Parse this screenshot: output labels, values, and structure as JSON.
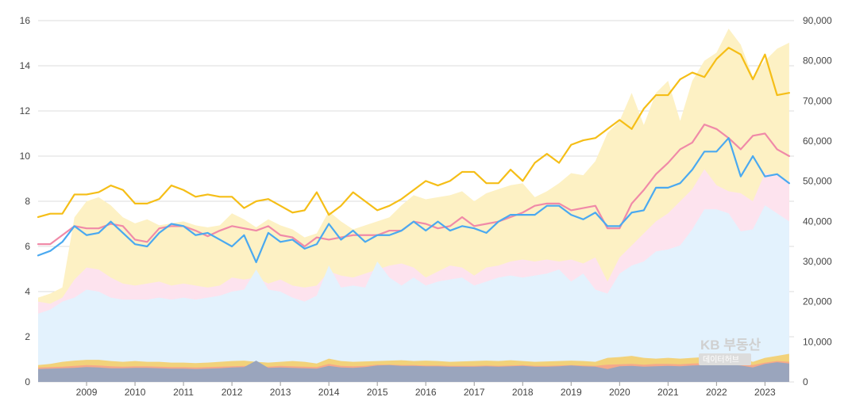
{
  "watermark": {
    "logo": "KB 부동산",
    "sub": "데이터허브"
  },
  "colors": {
    "area_yellow": "#fdf1c4",
    "area_pink": "#fde3ee",
    "area_blue": "#e3f2fd",
    "bottom_gold": "#f2d27a",
    "bottom_orange": "#f5a98a",
    "bottom_slate": "#9aa5bd",
    "line_gold": "#f5be17",
    "line_pink": "#f08aa8",
    "line_blue": "#4aa9f0",
    "grid": "#dddddd"
  },
  "chart_data": {
    "type": "line",
    "x_start": 2008.0,
    "x_end": 2023.6,
    "x_step": 0.25,
    "xticks": [
      "2009",
      "2010",
      "2011",
      "2012",
      "2013",
      "2014",
      "2015",
      "2016",
      "2017",
      "2018",
      "2019",
      "2020",
      "2021",
      "2022",
      "2023"
    ],
    "yleft": {
      "ticks": [
        "0",
        "2",
        "4",
        "6",
        "8",
        "10",
        "12",
        "14",
        "16"
      ],
      "range": [
        0,
        16
      ]
    },
    "yright": {
      "ticks": [
        "0",
        "10,000",
        "20,000",
        "30,000",
        "40,000",
        "50,000",
        "60,000",
        "70,000",
        "80,000",
        "90,000"
      ],
      "range": [
        0,
        90000
      ]
    },
    "grid": true,
    "legend": "none",
    "lines": [
      {
        "color": "line_gold",
        "axis": "left",
        "values": [
          7.3,
          7.45,
          7.45,
          8.3,
          8.3,
          8.4,
          8.7,
          8.5,
          7.9,
          7.9,
          8.1,
          8.7,
          8.5,
          8.2,
          8.3,
          8.2,
          8.2,
          7.7,
          8.0,
          8.1,
          7.8,
          7.5,
          7.6,
          8.4,
          7.4,
          7.8,
          8.4,
          8.0,
          7.6,
          7.8,
          8.1,
          8.5,
          8.9,
          8.7,
          8.9,
          9.3,
          9.3,
          8.8,
          8.8,
          9.4,
          8.9,
          9.7,
          10.1,
          9.7,
          10.5,
          10.7,
          10.8,
          11.2,
          11.6,
          11.2,
          12.1,
          12.7,
          12.7,
          13.4,
          13.7,
          13.5,
          14.3,
          14.8,
          14.5,
          13.4,
          14.5,
          12.7,
          12.8
        ]
      },
      {
        "color": "line_pink",
        "axis": "left",
        "values": [
          6.1,
          6.1,
          6.5,
          6.9,
          6.8,
          6.8,
          7.0,
          6.9,
          6.3,
          6.2,
          6.8,
          6.9,
          6.9,
          6.7,
          6.45,
          6.7,
          6.9,
          6.8,
          6.7,
          6.9,
          6.5,
          6.4,
          6.0,
          6.4,
          6.3,
          6.4,
          6.5,
          6.5,
          6.5,
          6.7,
          6.7,
          7.1,
          7.0,
          6.8,
          6.9,
          7.3,
          6.9,
          7.0,
          7.1,
          7.3,
          7.5,
          7.8,
          7.9,
          7.9,
          7.6,
          7.7,
          7.8,
          6.8,
          6.8,
          7.9,
          8.5,
          9.2,
          9.7,
          10.3,
          10.6,
          11.4,
          11.2,
          10.8,
          10.3,
          10.9,
          11.0,
          10.3,
          10.0
        ]
      },
      {
        "color": "line_blue",
        "axis": "left",
        "values": [
          5.6,
          5.8,
          6.2,
          6.9,
          6.5,
          6.6,
          7.1,
          6.6,
          6.1,
          6.0,
          6.6,
          7.0,
          6.9,
          6.5,
          6.6,
          6.3,
          6.0,
          6.5,
          5.3,
          6.6,
          6.2,
          6.3,
          5.9,
          6.1,
          7.0,
          6.3,
          6.7,
          6.2,
          6.5,
          6.5,
          6.7,
          7.1,
          6.7,
          7.1,
          6.7,
          6.9,
          6.8,
          6.6,
          7.1,
          7.4,
          7.4,
          7.4,
          7.8,
          7.8,
          7.4,
          7.2,
          7.5,
          6.9,
          6.9,
          7.5,
          7.6,
          8.6,
          8.6,
          8.8,
          9.4,
          10.2,
          10.2,
          10.8,
          9.1,
          10.0,
          9.1,
          9.2,
          8.8
        ]
      }
    ],
    "areas": [
      {
        "color": "area_yellow",
        "axis": "right",
        "values": [
          21000,
          22000,
          23500,
          41000,
          45000,
          46000,
          44000,
          41000,
          39500,
          40500,
          39000,
          39500,
          40000,
          39000,
          38500,
          39000,
          42000,
          40500,
          38500,
          40500,
          39000,
          38000,
          36000,
          37000,
          42500,
          40000,
          38000,
          39000,
          40000,
          41000,
          44000,
          46500,
          45500,
          46000,
          46500,
          47500,
          45000,
          47000,
          48000,
          49000,
          49500,
          46000,
          47500,
          49500,
          52000,
          51500,
          55000,
          62000,
          65000,
          72000,
          64000,
          72000,
          75000,
          65000,
          75000,
          80000,
          82000,
          88000,
          84000,
          76000,
          80000,
          83000,
          84500
        ]
      },
      {
        "color": "area_pink",
        "axis": "right",
        "values": [
          20000,
          19500,
          21000,
          25500,
          28500,
          28000,
          26000,
          24500,
          24000,
          24500,
          25000,
          24000,
          24500,
          24000,
          23500,
          24000,
          26000,
          25500,
          26000,
          24500,
          25500,
          24000,
          23500,
          24000,
          27500,
          26500,
          26000,
          27000,
          28000,
          29000,
          29500,
          28500,
          26000,
          27500,
          29000,
          28500,
          26500,
          28500,
          29000,
          30000,
          30500,
          30000,
          30500,
          30000,
          30500,
          29500,
          31000,
          25000,
          31000,
          34000,
          37000,
          40000,
          42000,
          45000,
          48000,
          53000,
          49000,
          47500,
          47000,
          45000,
          52000,
          51500,
          50000
        ]
      },
      {
        "color": "area_blue",
        "axis": "right",
        "values": [
          17000,
          18000,
          20000,
          21000,
          23000,
          22500,
          21000,
          20500,
          20500,
          20500,
          21000,
          20500,
          21000,
          20500,
          21000,
          21500,
          22500,
          23000,
          28000,
          23000,
          22500,
          21000,
          20000,
          21500,
          29000,
          23500,
          24000,
          23500,
          30000,
          26000,
          24000,
          26000,
          24000,
          25000,
          25500,
          26000,
          24000,
          25000,
          26000,
          26500,
          26000,
          26500,
          27000,
          28000,
          25000,
          27000,
          23000,
          22000,
          27000,
          29000,
          30000,
          32500,
          33000,
          34000,
          38000,
          43000,
          43000,
          42000,
          37500,
          38000,
          44000,
          42000,
          40000
        ]
      },
      {
        "color": "bottom_gold",
        "axis": "right",
        "values": [
          4200,
          4500,
          5000,
          5300,
          5500,
          5500,
          5200,
          5000,
          5200,
          5000,
          5000,
          4800,
          4800,
          4700,
          4800,
          5000,
          5200,
          5300,
          5000,
          4800,
          5000,
          5200,
          5000,
          4600,
          5800,
          5200,
          5000,
          5100,
          5200,
          5300,
          5400,
          5200,
          5300,
          5200,
          5000,
          5100,
          5200,
          5300,
          5200,
          5400,
          5200,
          5000,
          5100,
          5200,
          5300,
          5200,
          5000,
          6000,
          6200,
          6500,
          6000,
          5800,
          6000,
          5800,
          6000,
          6200,
          6300,
          6500,
          6000,
          5000,
          6000,
          6500,
          7000
        ]
      },
      {
        "color": "bottom_orange",
        "axis": "right",
        "values": [
          3600,
          3700,
          3800,
          4000,
          4200,
          4100,
          3900,
          3800,
          3900,
          3900,
          3800,
          3700,
          3700,
          3600,
          3700,
          3800,
          3900,
          4000,
          3800,
          3800,
          4000,
          3900,
          3800,
          3700,
          4500,
          4000,
          3900,
          4000,
          4300,
          4300,
          4200,
          4200,
          4100,
          4100,
          4000,
          4000,
          4000,
          4100,
          4000,
          4100,
          4200,
          4000,
          4000,
          4100,
          4200,
          4100,
          4000,
          4300,
          4400,
          4500,
          4300,
          4500,
          4500,
          4400,
          4600,
          4700,
          4800,
          4800,
          4600,
          4200,
          4800,
          5200,
          5000
        ]
      },
      {
        "color": "bottom_slate",
        "axis": "right",
        "values": [
          3200,
          3300,
          3400,
          3500,
          3700,
          3600,
          3400,
          3400,
          3500,
          3500,
          3400,
          3300,
          3300,
          3200,
          3300,
          3400,
          3600,
          3700,
          5300,
          3500,
          3600,
          3500,
          3400,
          3300,
          4000,
          3600,
          3500,
          3700,
          4100,
          4200,
          4000,
          4000,
          3900,
          3900,
          3800,
          3800,
          3800,
          3900,
          3800,
          3900,
          4000,
          3800,
          3800,
          3900,
          4100,
          3900,
          3800,
          3200,
          3900,
          4000,
          3800,
          3900,
          4000,
          3900,
          4100,
          4200,
          4300,
          4300,
          4100,
          3600,
          4500,
          4900,
          4600
        ]
      }
    ]
  }
}
